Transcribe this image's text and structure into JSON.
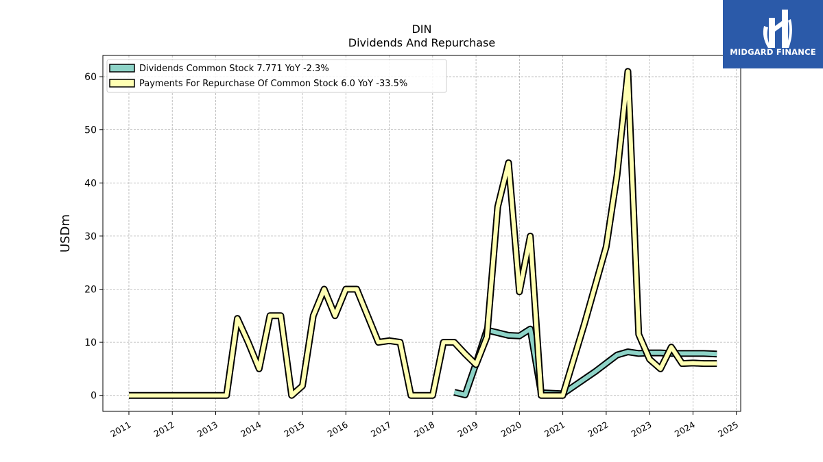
{
  "chart_data": {
    "type": "line",
    "title": "DIN",
    "subtitle": "Dividends And Repurchase",
    "ylabel": "USDm",
    "xlabel": "",
    "xlim": [
      2010.4,
      2025.1
    ],
    "ylim": [
      -3,
      64
    ],
    "yticks": [
      0,
      10,
      20,
      30,
      40,
      50,
      60
    ],
    "xticks": [
      "2011",
      "2012",
      "2013",
      "2014",
      "2015",
      "2016",
      "2017",
      "2018",
      "2019",
      "2020",
      "2021",
      "2022",
      "2023",
      "2024",
      "2025"
    ],
    "grid": true,
    "legend_position": "upper-left",
    "series": [
      {
        "name": "Dividends Common Stock  7.771 YoY -2.3%",
        "color": "#8dd3c7",
        "points": [
          [
            2018.5,
            0.6
          ],
          [
            2018.75,
            0.1
          ],
          [
            2019.0,
            6.0
          ],
          [
            2019.25,
            12.3
          ],
          [
            2019.5,
            11.8
          ],
          [
            2019.75,
            11.3
          ],
          [
            2020.0,
            11.2
          ],
          [
            2020.25,
            12.5
          ],
          [
            2020.5,
            0.5
          ],
          [
            2020.75,
            0.4
          ],
          [
            2021.0,
            0.3
          ],
          [
            2021.75,
            4.5
          ],
          [
            2022.25,
            7.6
          ],
          [
            2022.5,
            8.2
          ],
          [
            2022.75,
            7.9
          ],
          [
            2023.0,
            8.0
          ],
          [
            2023.25,
            8.0
          ],
          [
            2023.5,
            7.9
          ],
          [
            2023.75,
            7.9
          ],
          [
            2024.0,
            7.9
          ],
          [
            2024.25,
            7.9
          ],
          [
            2024.55,
            7.8
          ]
        ]
      },
      {
        "name": "Payments For Repurchase Of Common Stock  6.0 YoY -33.5%",
        "color": "#ffffb3",
        "points": [
          [
            2011.0,
            0.0
          ],
          [
            2011.5,
            0.0
          ],
          [
            2012.0,
            0.0
          ],
          [
            2012.5,
            0.0
          ],
          [
            2013.0,
            0.0
          ],
          [
            2013.25,
            0.0
          ],
          [
            2013.5,
            14.5
          ],
          [
            2013.75,
            10.0
          ],
          [
            2014.0,
            5.0
          ],
          [
            2014.25,
            15.0
          ],
          [
            2014.5,
            15.0
          ],
          [
            2014.75,
            0.0
          ],
          [
            2015.0,
            1.8
          ],
          [
            2015.25,
            15.0
          ],
          [
            2015.5,
            20.0
          ],
          [
            2015.75,
            15.0
          ],
          [
            2016.0,
            20.0
          ],
          [
            2016.25,
            20.0
          ],
          [
            2016.5,
            15.0
          ],
          [
            2016.75,
            10.0
          ],
          [
            2017.0,
            10.3
          ],
          [
            2017.25,
            10.0
          ],
          [
            2017.5,
            0.0
          ],
          [
            2017.75,
            0.0
          ],
          [
            2018.0,
            0.0
          ],
          [
            2018.25,
            10.0
          ],
          [
            2018.5,
            10.0
          ],
          [
            2018.75,
            7.8
          ],
          [
            2019.0,
            5.8
          ],
          [
            2019.25,
            11.0
          ],
          [
            2019.5,
            35.5
          ],
          [
            2019.75,
            43.8
          ],
          [
            2020.0,
            19.5
          ],
          [
            2020.25,
            30.0
          ],
          [
            2020.5,
            0.0
          ],
          [
            2020.75,
            0.0
          ],
          [
            2021.0,
            0.0
          ],
          [
            2021.5,
            13.5
          ],
          [
            2022.0,
            28.0
          ],
          [
            2022.25,
            41.5
          ],
          [
            2022.5,
            61.0
          ],
          [
            2022.75,
            11.5
          ],
          [
            2023.0,
            6.8
          ],
          [
            2023.25,
            5.0
          ],
          [
            2023.5,
            9.1
          ],
          [
            2023.75,
            6.0
          ],
          [
            2024.0,
            6.1
          ],
          [
            2024.25,
            6.0
          ],
          [
            2024.55,
            6.0
          ]
        ]
      }
    ]
  },
  "logo": {
    "text": "MIDGARD FINANCE",
    "background": "#2b5aa9"
  }
}
